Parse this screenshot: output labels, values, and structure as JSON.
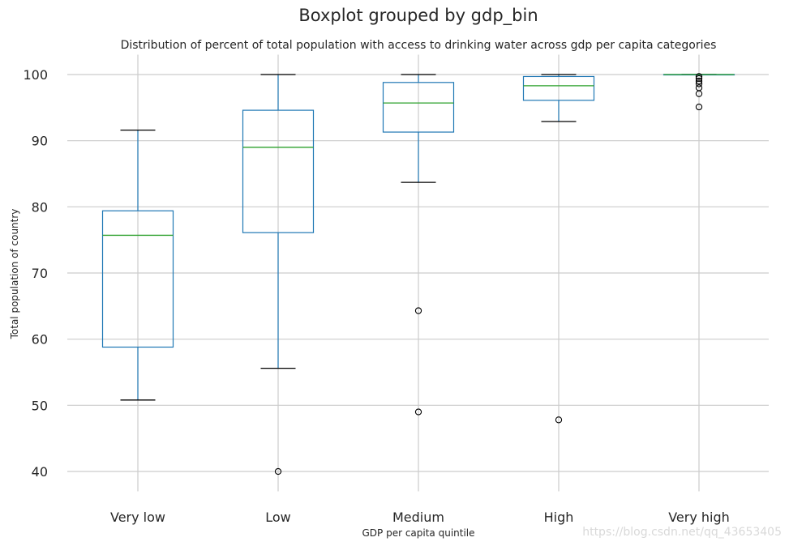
{
  "chart_data": {
    "type": "boxplot",
    "suptitle": "Boxplot grouped by gdp_bin",
    "title": "Distribution of percent of total population with access to drinking water across gdp per capita categories",
    "xlabel": "GDP per capita quintile",
    "ylabel": "Total population of country",
    "ylim": [
      37,
      103
    ],
    "yticks": [
      40,
      50,
      60,
      70,
      80,
      90,
      100
    ],
    "grid": true,
    "categories": [
      "Very low",
      "Low",
      "Medium",
      "High",
      "Very high"
    ],
    "boxes": [
      {
        "category": "Very low",
        "whisker_low": 50.8,
        "q1": 58.8,
        "median": 75.7,
        "q3": 79.4,
        "whisker_high": 91.6,
        "outliers": []
      },
      {
        "category": "Low",
        "whisker_low": 55.6,
        "q1": 76.1,
        "median": 89.0,
        "q3": 94.6,
        "whisker_high": 100.0,
        "outliers": [
          40.0
        ]
      },
      {
        "category": "Medium",
        "whisker_low": 83.7,
        "q1": 91.3,
        "median": 95.7,
        "q3": 98.8,
        "whisker_high": 100.0,
        "outliers": [
          64.3,
          49.0
        ]
      },
      {
        "category": "High",
        "whisker_low": 92.9,
        "q1": 96.1,
        "median": 98.3,
        "q3": 99.7,
        "whisker_high": 100.0,
        "outliers": [
          47.8
        ]
      },
      {
        "category": "Very high",
        "whisker_low": 100.0,
        "q1": 100.0,
        "median": 100.0,
        "q3": 100.0,
        "whisker_high": 100.0,
        "outliers": [
          99.7,
          99.4,
          99.0,
          98.6,
          98.0,
          97.1,
          95.1
        ]
      }
    ],
    "colors": {
      "box": "#1f77b4",
      "median": "#2ca02c",
      "whisker_cap": "#000000",
      "grid": "#cccccc",
      "text": "#262626"
    }
  },
  "watermark": "https://blog.csdn.net/qq_43653405"
}
